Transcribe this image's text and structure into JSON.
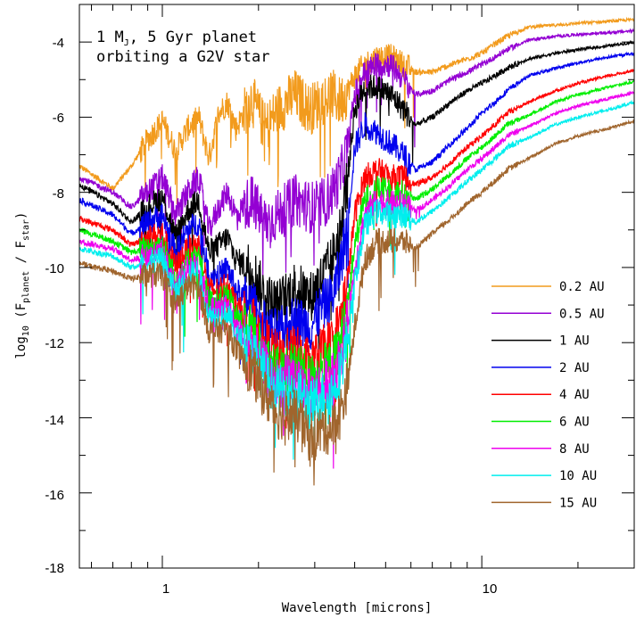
{
  "chart_data": {
    "type": "line",
    "title": "",
    "xlabel": "Wavelength  [microns]",
    "ylabel": {
      "pre": "log",
      "pre_sub": "10",
      "open": " (F",
      "num_sub": "planet",
      "mid": " / F",
      "den_sub": "star",
      "close": ")"
    },
    "xscale": "log",
    "xlim": [
      0.55,
      30
    ],
    "ylim": [
      -18,
      -3
    ],
    "xticks_labeled": [
      "1",
      "10"
    ],
    "yticks_labeled": [
      "-18",
      "-16",
      "-14",
      "-12",
      "-10",
      "-8",
      "-6",
      "-4"
    ],
    "annotation": {
      "line1_pre": "1 M",
      "line1_sub": "J",
      "line1_post": ", 5 Gyr planet",
      "line2": "orbiting a G2V star"
    },
    "legend_position": "lower-right",
    "series": [
      {
        "name": "0.2 AU",
        "color": "#f29b1d",
        "offset": 0.0,
        "x": [
          0.55,
          0.7,
          0.8,
          0.9,
          1.0,
          1.1,
          1.2,
          1.3,
          1.4,
          1.5,
          1.6,
          1.7,
          1.9,
          2.1,
          2.3,
          2.6,
          2.9,
          3.2,
          3.4,
          3.6,
          3.8,
          4.0,
          4.3,
          4.7,
          5.2,
          5.7,
          6.2,
          7.0,
          8.0,
          9.0,
          10.0,
          11.0,
          12.0,
          14.0,
          17.0,
          20.0,
          25.0,
          30.0
        ],
        "y": [
          -7.3,
          -7.9,
          -7.3,
          -6.6,
          -6.1,
          -6.9,
          -6.3,
          -6.0,
          -7.1,
          -5.9,
          -5.6,
          -6.3,
          -5.5,
          -6.3,
          -5.8,
          -5.4,
          -5.8,
          -5.5,
          -5.4,
          -5.6,
          -5.3,
          -4.9,
          -4.6,
          -4.4,
          -4.4,
          -4.6,
          -4.8,
          -4.8,
          -4.6,
          -4.45,
          -4.3,
          -4.05,
          -3.85,
          -3.6,
          -3.55,
          -3.5,
          -3.45,
          -3.4
        ]
      },
      {
        "name": "0.5 AU",
        "color": "#9400d3",
        "offset": 0.0,
        "x": [
          0.55,
          0.7,
          0.8,
          0.9,
          1.0,
          1.1,
          1.2,
          1.3,
          1.4,
          1.5,
          1.6,
          1.7,
          1.9,
          2.1,
          2.3,
          2.6,
          2.9,
          3.2,
          3.4,
          3.6,
          3.8,
          4.0,
          4.3,
          4.7,
          5.2,
          5.7,
          6.2,
          7.0,
          8.0,
          9.0,
          10.0,
          11.0,
          12.0,
          14.0,
          17.0,
          20.0,
          25.0,
          30.0
        ],
        "y": [
          -7.6,
          -8.0,
          -8.4,
          -8.0,
          -7.6,
          -8.6,
          -8.0,
          -7.6,
          -9.0,
          -8.4,
          -8.0,
          -8.6,
          -8.2,
          -8.8,
          -8.6,
          -8.2,
          -8.4,
          -8.3,
          -8.0,
          -7.6,
          -6.8,
          -5.4,
          -4.8,
          -4.6,
          -4.6,
          -5.0,
          -5.4,
          -5.3,
          -5.0,
          -4.8,
          -4.6,
          -4.4,
          -4.2,
          -3.95,
          -3.85,
          -3.8,
          -3.75,
          -3.7
        ]
      },
      {
        "name": "1 AU",
        "color": "#000000",
        "offset": 0.0,
        "x": [
          0.55,
          0.7,
          0.8,
          0.9,
          1.0,
          1.1,
          1.2,
          1.3,
          1.4,
          1.5,
          1.6,
          1.7,
          1.9,
          2.1,
          2.3,
          2.6,
          2.9,
          3.2,
          3.4,
          3.6,
          3.8,
          4.0,
          4.3,
          4.7,
          5.2,
          5.7,
          6.2,
          7.0,
          8.0,
          9.0,
          10.0,
          11.0,
          12.0,
          14.0,
          17.0,
          20.0,
          25.0,
          30.0
        ],
        "y": [
          -7.8,
          -8.3,
          -8.8,
          -8.4,
          -8.1,
          -9.2,
          -8.5,
          -8.2,
          -9.6,
          -9.4,
          -9.2,
          -9.8,
          -10.0,
          -10.8,
          -11.0,
          -10.5,
          -10.8,
          -10.2,
          -9.8,
          -9.0,
          -7.6,
          -5.8,
          -5.2,
          -5.2,
          -5.4,
          -5.8,
          -6.2,
          -6.0,
          -5.6,
          -5.3,
          -5.1,
          -4.9,
          -4.7,
          -4.45,
          -4.3,
          -4.2,
          -4.1,
          -4.0
        ]
      },
      {
        "name": "2 AU",
        "color": "#0000ee",
        "offset": 0.0,
        "x": [
          0.55,
          0.7,
          0.8,
          0.9,
          1.0,
          1.1,
          1.2,
          1.3,
          1.4,
          1.5,
          1.6,
          1.7,
          1.9,
          2.1,
          2.3,
          2.6,
          2.9,
          3.2,
          3.4,
          3.6,
          3.8,
          4.0,
          4.3,
          4.7,
          5.2,
          5.7,
          6.2,
          7.0,
          8.0,
          9.0,
          10.0,
          11.0,
          12.0,
          14.0,
          17.0,
          20.0,
          25.0,
          30.0
        ],
        "y": [
          -8.2,
          -8.6,
          -9.1,
          -8.8,
          -8.6,
          -9.6,
          -9.0,
          -8.8,
          -10.2,
          -10.2,
          -10.0,
          -10.6,
          -11.0,
          -11.6,
          -11.8,
          -11.4,
          -11.6,
          -11.0,
          -10.8,
          -10.0,
          -8.8,
          -6.8,
          -6.2,
          -6.4,
          -6.7,
          -7.0,
          -7.4,
          -7.2,
          -6.7,
          -6.3,
          -5.9,
          -5.6,
          -5.3,
          -4.9,
          -4.7,
          -4.55,
          -4.4,
          -4.3
        ]
      },
      {
        "name": "4 AU",
        "color": "#ff0000",
        "offset": 0.0,
        "x": [
          0.55,
          0.7,
          0.8,
          0.9,
          1.0,
          1.1,
          1.2,
          1.3,
          1.4,
          1.5,
          1.6,
          1.7,
          1.9,
          2.1,
          2.3,
          2.6,
          2.9,
          3.2,
          3.4,
          3.6,
          3.8,
          4.0,
          4.3,
          4.7,
          5.2,
          5.7,
          6.2,
          7.0,
          8.0,
          9.0,
          10.0,
          11.0,
          12.0,
          14.0,
          17.0,
          20.0,
          25.0,
          30.0
        ],
        "y": [
          -8.7,
          -9.0,
          -9.4,
          -9.2,
          -9.1,
          -10.0,
          -9.5,
          -9.4,
          -10.6,
          -10.6,
          -10.4,
          -11.0,
          -11.4,
          -12.0,
          -12.4,
          -12.2,
          -12.6,
          -12.2,
          -12.0,
          -11.4,
          -10.4,
          -8.6,
          -7.6,
          -7.4,
          -7.6,
          -7.6,
          -7.8,
          -7.6,
          -7.2,
          -6.8,
          -6.5,
          -6.2,
          -5.9,
          -5.6,
          -5.3,
          -5.1,
          -4.9,
          -4.75
        ]
      },
      {
        "name": "6 AU",
        "color": "#00ee00",
        "offset": 0.0,
        "x": [
          0.55,
          0.7,
          0.8,
          0.9,
          1.0,
          1.1,
          1.2,
          1.3,
          1.4,
          1.5,
          1.6,
          1.7,
          1.9,
          2.1,
          2.3,
          2.6,
          2.9,
          3.2,
          3.4,
          3.6,
          3.8,
          4.0,
          4.3,
          4.7,
          5.2,
          5.7,
          6.2,
          7.0,
          8.0,
          9.0,
          10.0,
          11.0,
          12.0,
          14.0,
          17.0,
          20.0,
          25.0,
          30.0
        ],
        "y": [
          -9.0,
          -9.3,
          -9.6,
          -9.5,
          -9.4,
          -10.3,
          -9.8,
          -9.7,
          -10.9,
          -10.9,
          -10.7,
          -11.3,
          -11.7,
          -12.4,
          -12.8,
          -12.6,
          -13.0,
          -12.7,
          -12.6,
          -12.0,
          -11.0,
          -9.4,
          -8.2,
          -7.9,
          -8.0,
          -8.0,
          -8.2,
          -7.9,
          -7.5,
          -7.1,
          -6.8,
          -6.5,
          -6.2,
          -5.95,
          -5.6,
          -5.4,
          -5.2,
          -5.05
        ]
      },
      {
        "name": "8 AU",
        "color": "#ee00ee",
        "offset": 0.0,
        "x": [
          0.55,
          0.7,
          0.8,
          0.9,
          1.0,
          1.1,
          1.2,
          1.3,
          1.4,
          1.5,
          1.6,
          1.7,
          1.9,
          2.1,
          2.3,
          2.6,
          2.9,
          3.2,
          3.4,
          3.6,
          3.8,
          4.0,
          4.3,
          4.7,
          5.2,
          5.7,
          6.2,
          7.0,
          8.0,
          9.0,
          10.0,
          11.0,
          12.0,
          14.0,
          17.0,
          20.0,
          25.0,
          30.0
        ],
        "y": [
          -9.3,
          -9.5,
          -9.8,
          -9.7,
          -9.6,
          -10.5,
          -10.0,
          -9.9,
          -11.1,
          -11.1,
          -11.0,
          -11.6,
          -12.0,
          -12.7,
          -13.1,
          -12.9,
          -13.4,
          -13.1,
          -13.0,
          -12.5,
          -11.5,
          -10.0,
          -8.6,
          -8.2,
          -8.3,
          -8.3,
          -8.5,
          -8.2,
          -7.8,
          -7.4,
          -7.1,
          -6.8,
          -6.5,
          -6.25,
          -5.9,
          -5.7,
          -5.5,
          -5.35
        ]
      },
      {
        "name": "10 AU",
        "color": "#00eeee",
        "offset": 0.0,
        "x": [
          0.55,
          0.7,
          0.8,
          0.9,
          1.0,
          1.1,
          1.2,
          1.3,
          1.4,
          1.5,
          1.6,
          1.7,
          1.9,
          2.1,
          2.3,
          2.6,
          2.9,
          3.2,
          3.4,
          3.6,
          3.8,
          4.0,
          4.3,
          4.7,
          5.2,
          5.7,
          6.2,
          7.0,
          8.0,
          9.0,
          10.0,
          11.0,
          12.0,
          14.0,
          17.0,
          20.0,
          25.0,
          30.0
        ],
        "y": [
          -9.5,
          -9.7,
          -10.0,
          -9.9,
          -9.8,
          -10.7,
          -10.2,
          -10.1,
          -11.3,
          -11.3,
          -11.2,
          -11.8,
          -12.2,
          -12.9,
          -13.3,
          -13.2,
          -13.7,
          -13.4,
          -13.3,
          -12.8,
          -11.9,
          -10.4,
          -8.9,
          -8.5,
          -8.6,
          -8.6,
          -8.8,
          -8.5,
          -8.1,
          -7.7,
          -7.4,
          -7.1,
          -6.8,
          -6.55,
          -6.2,
          -6.0,
          -5.8,
          -5.6
        ]
      },
      {
        "name": "15 AU",
        "color": "#a0652d",
        "offset": 0.0,
        "x": [
          0.55,
          0.7,
          0.8,
          0.9,
          1.0,
          1.1,
          1.2,
          1.3,
          1.4,
          1.5,
          1.6,
          1.7,
          1.9,
          2.1,
          2.3,
          2.6,
          2.9,
          3.2,
          3.4,
          3.6,
          3.8,
          4.0,
          4.3,
          4.7,
          5.2,
          5.7,
          6.2,
          7.0,
          8.0,
          9.0,
          10.0,
          11.0,
          12.0,
          14.0,
          17.0,
          20.0,
          25.0,
          30.0
        ],
        "y": [
          -9.9,
          -10.1,
          -10.3,
          -10.2,
          -10.2,
          -11.0,
          -10.5,
          -10.5,
          -11.7,
          -11.7,
          -11.6,
          -12.2,
          -12.7,
          -13.4,
          -13.9,
          -13.9,
          -14.5,
          -14.3,
          -14.3,
          -13.9,
          -13.1,
          -11.6,
          -9.8,
          -9.3,
          -9.3,
          -9.3,
          -9.5,
          -9.1,
          -8.7,
          -8.3,
          -8.0,
          -7.7,
          -7.4,
          -7.1,
          -6.7,
          -6.5,
          -6.3,
          -6.1
        ]
      }
    ]
  }
}
